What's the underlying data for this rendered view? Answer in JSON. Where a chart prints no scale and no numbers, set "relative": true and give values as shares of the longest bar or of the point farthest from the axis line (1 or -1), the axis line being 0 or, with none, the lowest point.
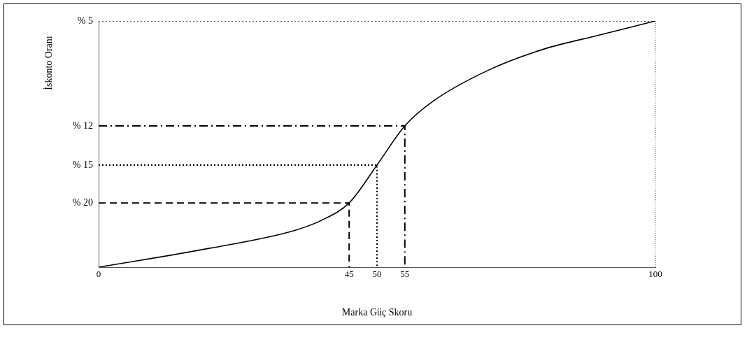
{
  "chart_data": {
    "type": "line",
    "xlabel": "Marka Güç Skoru",
    "ylabel": "İskonto Oranı",
    "relative": true,
    "xlim": [
      0,
      100
    ],
    "xticks": [
      0,
      45,
      50,
      55,
      100
    ],
    "grid": false,
    "legend": false,
    "marker": "none",
    "series": [
      {
        "color": "#000000",
        "line_style": "solid",
        "x": [
          0,
          20,
          35,
          40,
          45,
          50,
          55,
          60,
          70,
          80,
          90,
          100
        ],
        "values": [
          0,
          0.077,
          0.148,
          0.19,
          0.261,
          0.415,
          0.574,
          0.673,
          0.8,
          0.886,
          0.943,
          1
        ]
      },
      {
        "name": "% 5",
        "color": "#555555",
        "line_style": "dotted",
        "x": [
          0,
          100
        ],
        "values": [
          1,
          1
        ]
      },
      {
        "name": "% 20",
        "color": "#000000",
        "line_style": "dashed",
        "x": [
          0,
          45,
          45
        ],
        "values": [
          0.261,
          0.261,
          0
        ]
      },
      {
        "name": "% 15",
        "color": "#000000",
        "line_style": "dotted",
        "x": [
          0,
          50,
          50
        ],
        "values": [
          0.415,
          0.415,
          0
        ]
      },
      {
        "name": "% 12",
        "color": "#000000",
        "line_style": "dashdot",
        "x": [
          0,
          55,
          55
        ],
        "values": [
          0.574,
          0.574,
          0
        ]
      }
    ]
  }
}
